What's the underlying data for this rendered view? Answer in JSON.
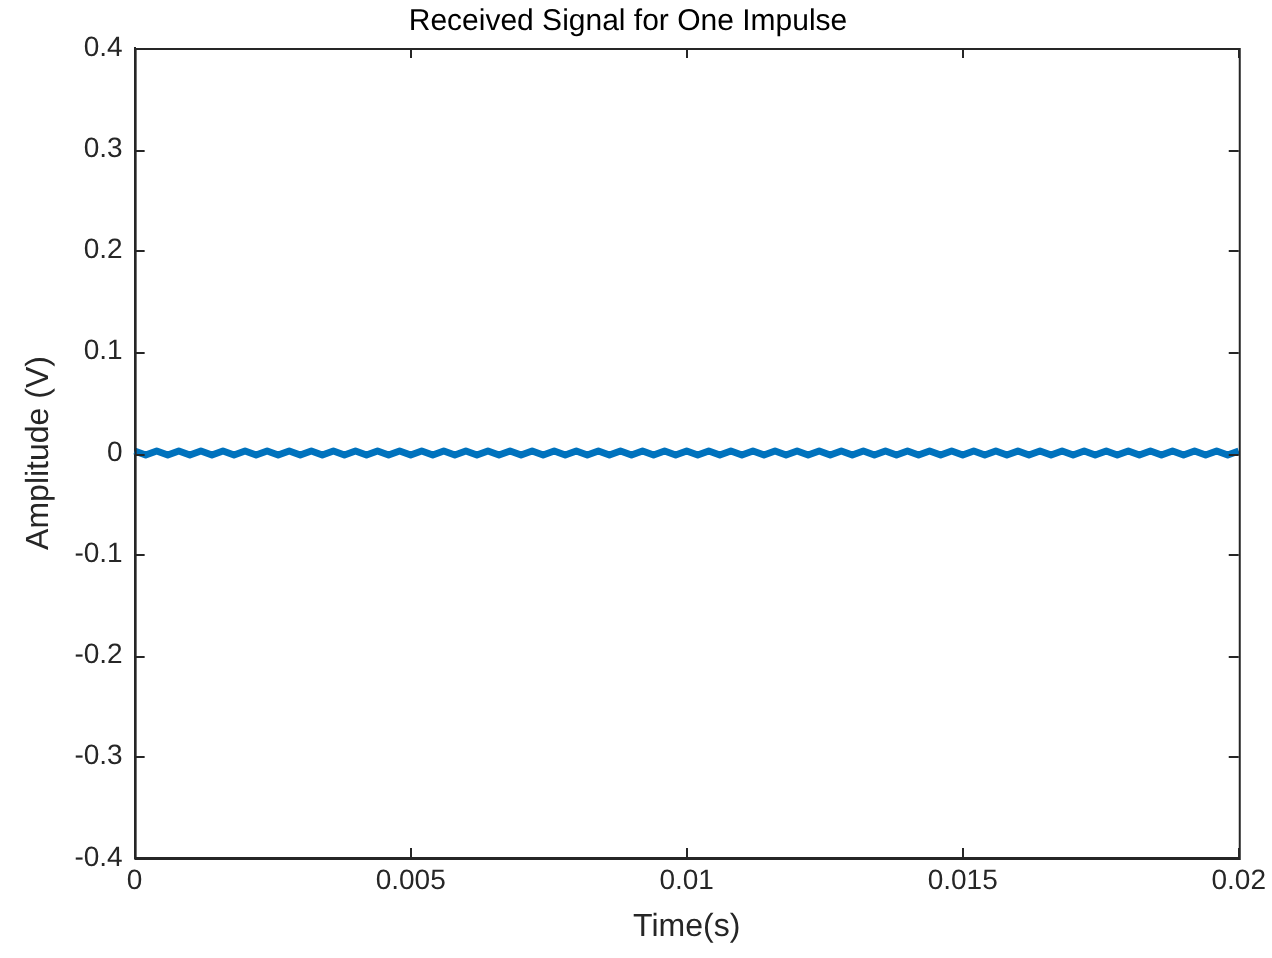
{
  "chart_data": {
    "type": "line",
    "title": "Received Signal for One Impulse",
    "xlabel": "Time(s)",
    "ylabel": "Amplitude (V)",
    "x": [
      0,
      0.0002,
      0.0004,
      0.0006,
      0.0008,
      0.001,
      0.0012,
      0.0014,
      0.0016,
      0.0018,
      0.002,
      0.0022,
      0.0024,
      0.0026,
      0.0028,
      0.003,
      0.0032,
      0.0034,
      0.0036,
      0.0038,
      0.004,
      0.0042,
      0.0044,
      0.0046,
      0.0048,
      0.005,
      0.0052,
      0.0054,
      0.0056,
      0.0058,
      0.006,
      0.0062,
      0.0064,
      0.0066,
      0.0068,
      0.007,
      0.0072,
      0.0074,
      0.0076,
      0.0078,
      0.008,
      0.0082,
      0.0084,
      0.0086,
      0.0088,
      0.009,
      0.0092,
      0.0094,
      0.0096,
      0.0098,
      0.01,
      0.0102,
      0.0104,
      0.0106,
      0.0108,
      0.011,
      0.0112,
      0.0114,
      0.0116,
      0.0118,
      0.012,
      0.0122,
      0.0124,
      0.0126,
      0.0128,
      0.013,
      0.0132,
      0.0134,
      0.0136,
      0.0138,
      0.014,
      0.0142,
      0.0144,
      0.0146,
      0.0148,
      0.015,
      0.0152,
      0.0154,
      0.0156,
      0.0158,
      0.016,
      0.0162,
      0.0164,
      0.0166,
      0.0168,
      0.017,
      0.0172,
      0.0174,
      0.0176,
      0.0178,
      0.018,
      0.0182,
      0.0184,
      0.0186,
      0.0188,
      0.019,
      0.0192,
      0.0194,
      0.0196,
      0.0198,
      0.02
    ],
    "series": [
      {
        "color": "#0072bd",
        "values": [
          0.002,
          -0.002,
          0.002,
          -0.002,
          0.002,
          -0.002,
          0.002,
          -0.002,
          0.002,
          -0.002,
          0.002,
          -0.002,
          0.002,
          -0.002,
          0.002,
          -0.002,
          0.002,
          -0.002,
          0.002,
          -0.002,
          0.002,
          -0.002,
          0.002,
          -0.002,
          0.002,
          -0.002,
          0.002,
          -0.002,
          0.002,
          -0.002,
          0.002,
          -0.002,
          0.002,
          -0.002,
          0.002,
          -0.002,
          0.002,
          -0.002,
          0.002,
          -0.002,
          0.002,
          -0.002,
          0.002,
          -0.002,
          0.002,
          -0.002,
          0.002,
          -0.002,
          0.002,
          -0.002,
          0.002,
          -0.002,
          0.002,
          -0.002,
          0.002,
          -0.002,
          0.002,
          -0.002,
          0.002,
          -0.002,
          0.002,
          -0.002,
          0.002,
          -0.002,
          0.002,
          -0.002,
          0.002,
          -0.002,
          0.002,
          -0.002,
          0.002,
          -0.002,
          0.002,
          -0.002,
          0.002,
          -0.002,
          0.002,
          -0.002,
          0.002,
          -0.002,
          0.002,
          -0.002,
          0.002,
          -0.002,
          0.002,
          -0.002,
          0.002,
          -0.002,
          0.002,
          -0.002,
          0.002,
          -0.002,
          0.002,
          -0.002,
          0.002,
          -0.002,
          0.002,
          -0.002,
          0.002,
          -0.002,
          0.002
        ]
      }
    ],
    "xlim": [
      0,
      0.02
    ],
    "xticks": [
      0,
      0.005,
      0.01,
      0.015,
      0.02
    ],
    "ylim": [
      -0.4,
      0.4
    ],
    "yticks": [
      -0.4,
      -0.3,
      -0.2,
      -0.1,
      0,
      0.1,
      0.2,
      0.3,
      0.4
    ],
    "grid": false,
    "legend": false,
    "marker": "none",
    "line_style": "solid"
  }
}
